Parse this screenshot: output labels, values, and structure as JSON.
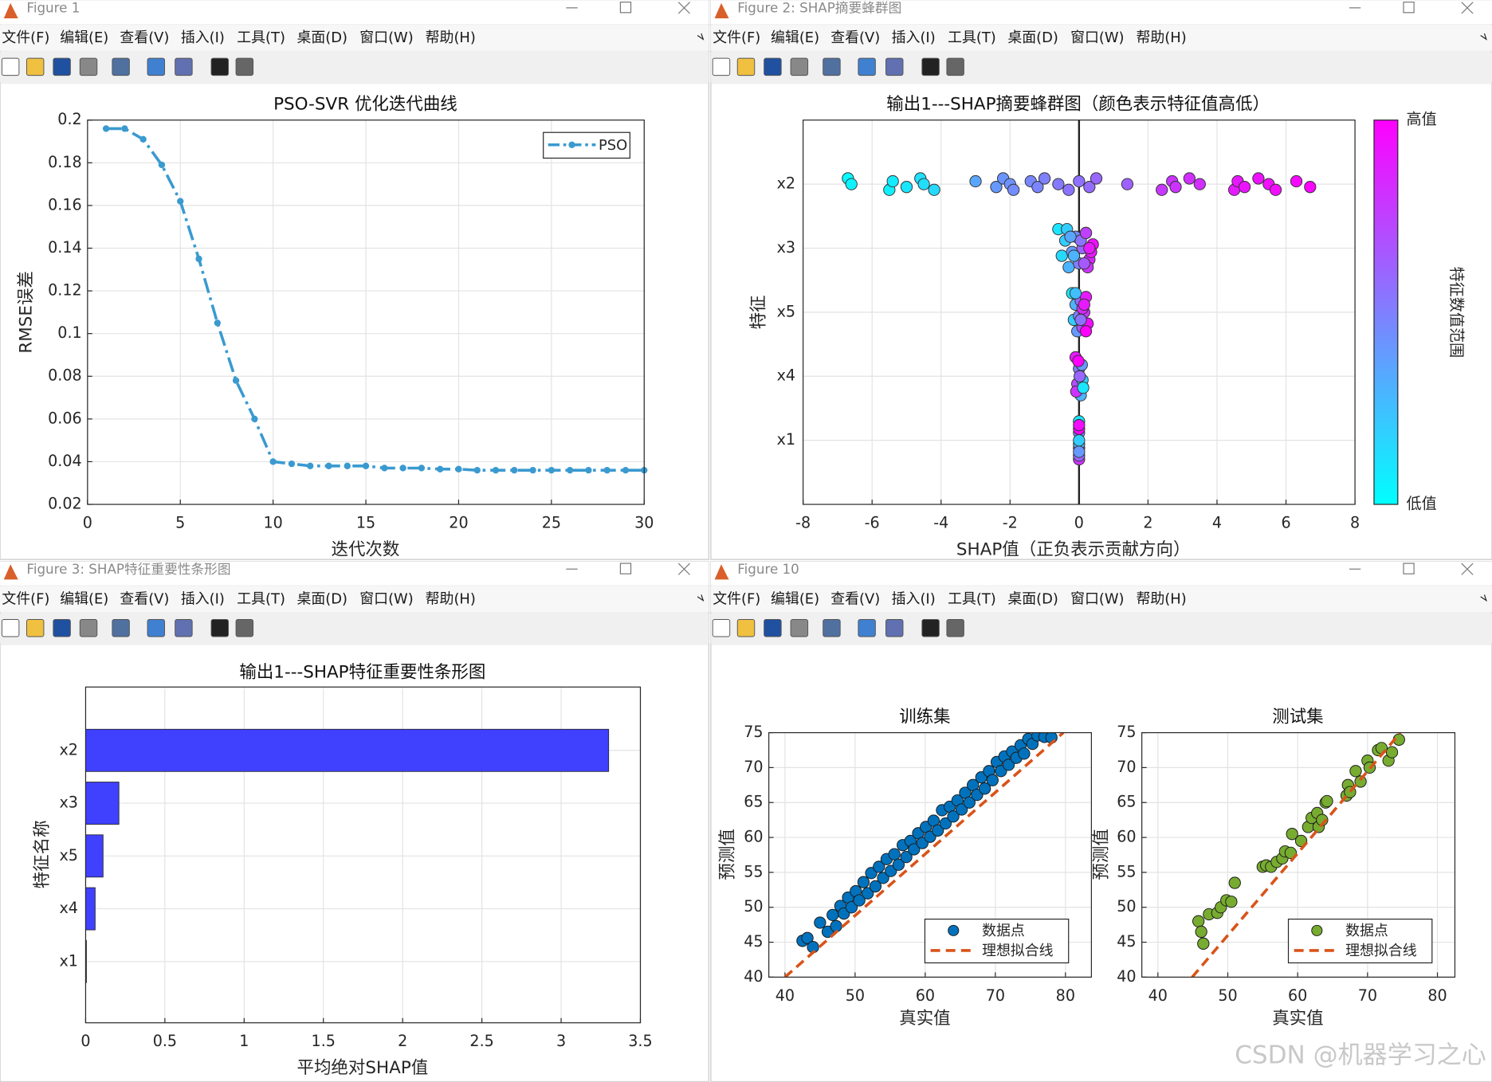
{
  "window_titles": [
    "Figure 1",
    "Figure 2: SHAP摘要蜂群图",
    "Figure 3: SHAP特征重要性条形图",
    "Figure 10"
  ],
  "menu": [
    "文件(F)",
    "编辑(E)",
    "查看(V)",
    "插入(I)",
    "工具(T)",
    "桌面(D)",
    "窗口(W)",
    "帮助(H)"
  ],
  "watermark": "CSDN @机器学习之心",
  "chart_data": [
    {
      "type": "line",
      "title": "PSO-SVR 优化迭代曲线",
      "xlabel": "迭代次数",
      "ylabel": "RMSE误差",
      "x": [
        1,
        2,
        3,
        4,
        5,
        6,
        7,
        8,
        9,
        10,
        11,
        12,
        13,
        14,
        15,
        16,
        17,
        18,
        19,
        20,
        21,
        22,
        23,
        24,
        25,
        26,
        27,
        28,
        29,
        30
      ],
      "series": [
        {
          "name": "PSO",
          "color": "#3a9ad0",
          "values": [
            0.196,
            0.196,
            0.191,
            0.179,
            0.162,
            0.135,
            0.105,
            0.078,
            0.06,
            0.04,
            0.039,
            0.038,
            0.038,
            0.038,
            0.038,
            0.037,
            0.037,
            0.037,
            0.0365,
            0.0365,
            0.036,
            0.036,
            0.036,
            0.036,
            0.036,
            0.036,
            0.036,
            0.036,
            0.036,
            0.036
          ]
        }
      ],
      "xlim": [
        0,
        30
      ],
      "xticks": [
        0,
        5,
        10,
        15,
        20,
        25,
        30
      ],
      "ylim": [
        0.02,
        0.2
      ],
      "yticks": [
        0.02,
        0.04,
        0.06,
        0.08,
        0.1,
        0.12,
        0.14,
        0.16,
        0.18,
        0.2
      ],
      "grid": true,
      "legend": "northeast"
    },
    {
      "type": "beeswarm",
      "title": "输出1---SHAP摘要蜂群图（颜色表示特征值高低）",
      "xlabel": "SHAP值（正负表示贡献方向）",
      "ylabel": "特征",
      "categories": [
        "x2",
        "x3",
        "x5",
        "x4",
        "x1"
      ],
      "points": [
        {
          "x": [
            -6.7,
            -6.6,
            -5.5,
            -5.4,
            -5.0,
            -4.6,
            -4.5,
            -4.2,
            -3.0,
            -2.4,
            -2.2,
            -2.0,
            -1.9,
            -1.4,
            -1.2,
            -1.0,
            -0.6,
            -0.3,
            0.0,
            0.3,
            0.5,
            1.4,
            2.4,
            2.7,
            2.8,
            3.2,
            3.5,
            4.5,
            4.6,
            4.8,
            5.2,
            5.5,
            5.7,
            6.3,
            6.7
          ],
          "c": [
            0.02,
            0.05,
            0.06,
            0.08,
            0.1,
            0.12,
            0.13,
            0.15,
            0.35,
            0.4,
            0.42,
            0.43,
            0.45,
            0.47,
            0.48,
            0.5,
            0.52,
            0.55,
            0.56,
            0.58,
            0.6,
            0.62,
            0.78,
            0.8,
            0.8,
            0.82,
            0.82,
            0.9,
            0.91,
            0.92,
            0.93,
            0.94,
            0.95,
            0.96,
            0.98
          ]
        },
        {
          "x": [
            -0.6,
            -0.5,
            -0.4,
            -0.3,
            -0.2,
            -0.1,
            0,
            0.1,
            0.2,
            0.3,
            0.4,
            -0.35,
            -0.15,
            0.05,
            0.25,
            0.35,
            -0.25,
            0.15,
            0.3,
            0.2
          ],
          "c": [
            0.1,
            0.15,
            0.2,
            0.3,
            0.4,
            0.45,
            0.5,
            0.6,
            0.7,
            0.85,
            0.95,
            0.2,
            0.3,
            0.55,
            0.8,
            0.9,
            0.35,
            0.65,
            0.9,
            0.75
          ]
        },
        {
          "x": [
            -0.2,
            -0.15,
            -0.1,
            -0.05,
            0,
            0.05,
            0.1,
            0.15,
            0.2,
            0.25,
            0.1,
            -0.1,
            0.05,
            0.15,
            0.2
          ],
          "c": [
            0.1,
            0.2,
            0.3,
            0.4,
            0.5,
            0.6,
            0.7,
            0.8,
            0.9,
            0.95,
            0.85,
            0.25,
            0.55,
            0.9,
            1.0
          ]
        },
        {
          "x": [
            -0.1,
            -0.05,
            0,
            0.05,
            0.1,
            0.08,
            -0.08,
            0.02,
            -0.02,
            0.12
          ],
          "c": [
            0.9,
            0.7,
            0.5,
            0.3,
            0.2,
            0.4,
            0.8,
            0.6,
            1.0,
            0.1
          ]
        },
        {
          "x": [
            0,
            0,
            0,
            0,
            0,
            0,
            0,
            0,
            0,
            0
          ],
          "c": [
            0.1,
            0.9,
            0.5,
            0.8,
            0.3,
            1.0,
            0.6,
            0.2,
            0.95,
            0.4
          ]
        }
      ],
      "colormap": [
        "#00ffff",
        "#ff00ff"
      ],
      "clim": [
        0,
        1
      ],
      "colorbar": {
        "high": "高值",
        "low": "低值",
        "label": "特征数值范围"
      },
      "xlim": [
        -8,
        8
      ],
      "xticks": [
        -8,
        -6,
        -4,
        -2,
        0,
        2,
        4,
        6,
        8
      ],
      "grid": true
    },
    {
      "type": "hbar",
      "title": "输出1---SHAP特征重要性条形图",
      "xlabel": "平均绝对SHAP值",
      "ylabel": "特征名称",
      "categories": [
        "x2",
        "x3",
        "x5",
        "x4",
        "x1"
      ],
      "values": [
        3.3,
        0.21,
        0.11,
        0.06,
        0.005
      ],
      "color": "#4040ff",
      "xlim": [
        0,
        3.5
      ],
      "xticks": [
        0,
        0.5,
        1,
        1.5,
        2,
        2.5,
        3,
        3.5
      ],
      "grid": true
    },
    {
      "type": "scatter",
      "title": "训练集",
      "xlabel": "真实值",
      "ylabel": "预测值",
      "series": [
        {
          "name": "数据点",
          "color": "#0072bd",
          "x": [
            42.5,
            43.2,
            44.0,
            45.0,
            46.1,
            46.8,
            47.3,
            47.9,
            48.4,
            49.0,
            49.5,
            50.1,
            50.6,
            51.2,
            51.8,
            52.3,
            52.9,
            53.4,
            54.0,
            54.5,
            55.1,
            55.6,
            56.2,
            56.8,
            57.3,
            57.9,
            58.4,
            59.0,
            59.6,
            60.1,
            60.7,
            61.2,
            61.8,
            62.4,
            62.9,
            63.5,
            64.0,
            64.6,
            65.2,
            65.7,
            66.3,
            66.8,
            67.4,
            68.0,
            68.5,
            69.1,
            69.6,
            70.2,
            70.8,
            71.3,
            71.9,
            72.4,
            73.0,
            73.6,
            74.1,
            74.7,
            75.3,
            76.0,
            77.0,
            78.0
          ],
          "values": [
            45.2,
            45.6,
            44.3,
            47.8,
            46.5,
            48.9,
            47.3,
            50.2,
            49.1,
            51.4,
            50.0,
            52.3,
            51.0,
            53.6,
            52.0,
            54.9,
            53.0,
            55.8,
            54.2,
            56.9,
            55.2,
            57.6,
            56.1,
            58.9,
            57.2,
            59.5,
            58.3,
            60.6,
            59.2,
            61.5,
            60.1,
            62.4,
            61.0,
            63.9,
            62.0,
            64.4,
            63.0,
            65.3,
            64.0,
            66.4,
            65.0,
            67.5,
            66.1,
            68.6,
            67.0,
            69.5,
            68.2,
            70.8,
            69.5,
            71.6,
            70.4,
            72.3,
            71.4,
            73.2,
            72.0,
            74.1,
            73.4,
            74.6,
            74.4,
            74.3
          ]
        },
        {
          "name": "理想拟合线",
          "color": "#d95319",
          "x": [
            40,
            79.7
          ],
          "values": [
            40,
            75
          ]
        }
      ],
      "xlim": [
        37.7,
        83.7
      ],
      "xticks": [
        40,
        50,
        60,
        70,
        80
      ],
      "ylim": [
        40,
        75
      ],
      "yticks": [
        40,
        45,
        50,
        55,
        60,
        65,
        70,
        75
      ],
      "grid": true,
      "legend": "southeast"
    },
    {
      "type": "scatter",
      "title": "测试集",
      "xlabel": "真实值",
      "ylabel": "预测值",
      "series": [
        {
          "name": "数据点",
          "color": "#77ac30",
          "x": [
            45.8,
            46.2,
            46.5,
            47.3,
            48.5,
            49.0,
            49.8,
            50.5,
            51.0,
            55.0,
            55.5,
            56.2,
            57.0,
            57.8,
            58.2,
            59.0,
            59.2,
            60.5,
            61.5,
            62.0,
            62.8,
            63.0,
            63.5,
            64.0,
            64.2,
            67.0,
            67.2,
            67.5,
            68.3,
            69.0,
            70.0,
            70.3,
            71.5,
            72.0,
            73.0,
            73.5,
            74.5
          ],
          "values": [
            48,
            46.5,
            44.8,
            49,
            49.2,
            50.0,
            51,
            50.8,
            53.5,
            55.8,
            56,
            55.8,
            56.5,
            57.0,
            58.0,
            57.8,
            60.5,
            59.5,
            61.5,
            62.8,
            63.5,
            61.5,
            62.5,
            65.0,
            65.2,
            66.0,
            67.5,
            66.5,
            69.5,
            68.0,
            71.0,
            70.0,
            72.5,
            72.8,
            71.0,
            72.2,
            74.0
          ]
        },
        {
          "name": "理想拟合线",
          "color": "#d95319",
          "x": [
            44.9,
            74.7
          ],
          "values": [
            40,
            75
          ]
        }
      ],
      "xlim": [
        37.7,
        82.5
      ],
      "xticks": [
        40,
        50,
        60,
        70,
        80
      ],
      "ylim": [
        40,
        75
      ],
      "yticks": [
        40,
        45,
        50,
        55,
        60,
        65,
        70,
        75
      ],
      "grid": true,
      "legend": "southeast"
    }
  ]
}
